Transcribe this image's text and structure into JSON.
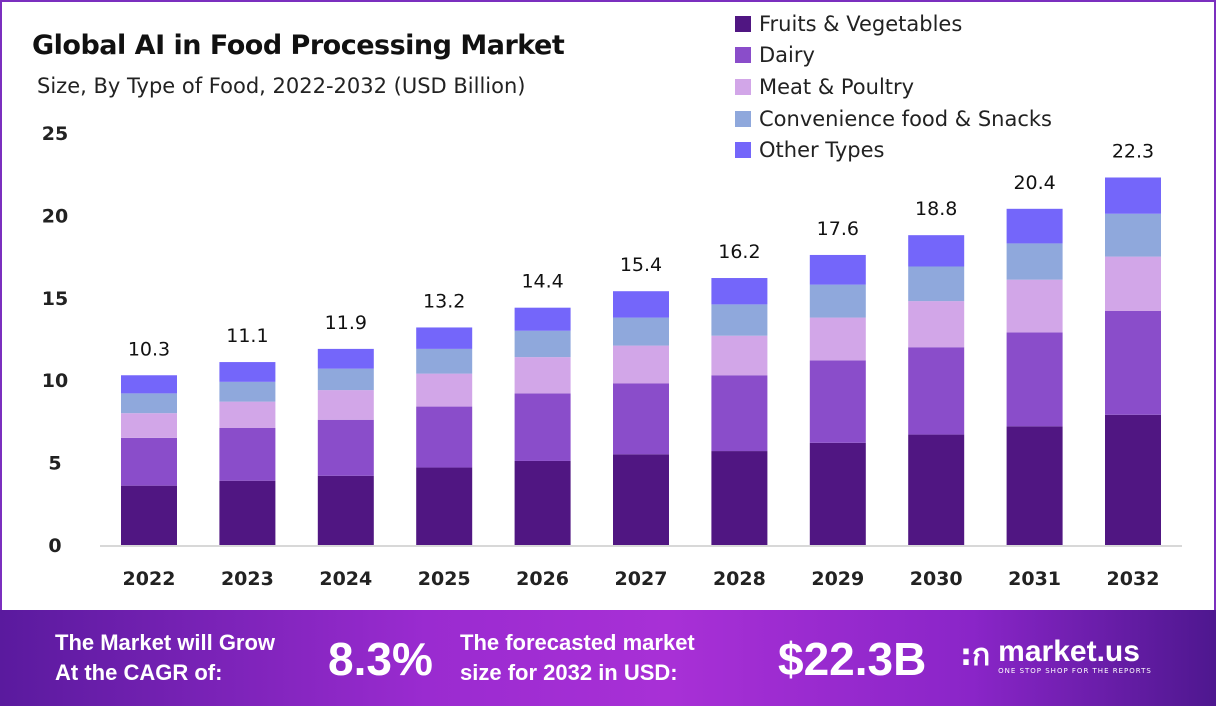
{
  "chart_data": {
    "type": "bar",
    "stacked": true,
    "title": "Global AI in Food Processing Market",
    "subtitle": "Size, By Type of Food, 2022-2032 (USD Billion)",
    "xlabel": "",
    "ylabel": "",
    "ylim": [
      0,
      25
    ],
    "yticks": [
      "0",
      "5",
      "10",
      "15",
      "20",
      "25"
    ],
    "grid": false,
    "legend_position": "top-right",
    "categories": [
      "2022",
      "2023",
      "2024",
      "2025",
      "2026",
      "2027",
      "2028",
      "2029",
      "2030",
      "2031",
      "2032"
    ],
    "series": [
      {
        "name": "Fruits & Vegetables",
        "color": "#501682",
        "values": [
          3.6,
          3.9,
          4.2,
          4.7,
          5.1,
          5.5,
          5.7,
          6.2,
          6.7,
          7.2,
          7.9
        ]
      },
      {
        "name": "Dairy",
        "color": "#8a4dca",
        "values": [
          2.9,
          3.2,
          3.4,
          3.7,
          4.1,
          4.3,
          4.6,
          5.0,
          5.3,
          5.7,
          6.3
        ]
      },
      {
        "name": "Meat & Poultry",
        "color": "#d2a6e8",
        "values": [
          1.5,
          1.6,
          1.8,
          2.0,
          2.2,
          2.3,
          2.4,
          2.6,
          2.8,
          3.2,
          3.3
        ]
      },
      {
        "name": "Convenience food & Snacks",
        "color": "#8fa8dc",
        "values": [
          1.2,
          1.2,
          1.3,
          1.5,
          1.6,
          1.7,
          1.9,
          2.0,
          2.1,
          2.2,
          2.6
        ]
      },
      {
        "name": "Other Types",
        "color": "#7466fa",
        "values": [
          1.1,
          1.2,
          1.2,
          1.3,
          1.4,
          1.6,
          1.6,
          1.8,
          1.9,
          2.1,
          2.2
        ]
      }
    ],
    "totals": [
      "10.3",
      "11.1",
      "11.9",
      "13.2",
      "14.4",
      "15.4",
      "16.2",
      "17.6",
      "18.8",
      "20.4",
      "22.3"
    ]
  },
  "banner": {
    "cagr_label_line1": "The Market will Grow",
    "cagr_label_line2": "At the CAGR of:",
    "cagr_value": "8.3%",
    "forecast_label_line1": "The forecasted market",
    "forecast_label_line2": "size for 2032 in USD:",
    "forecast_value": "$22.3B",
    "logo_name": "market.us",
    "logo_tagline": "ONE STOP SHOP FOR THE REPORTS"
  }
}
